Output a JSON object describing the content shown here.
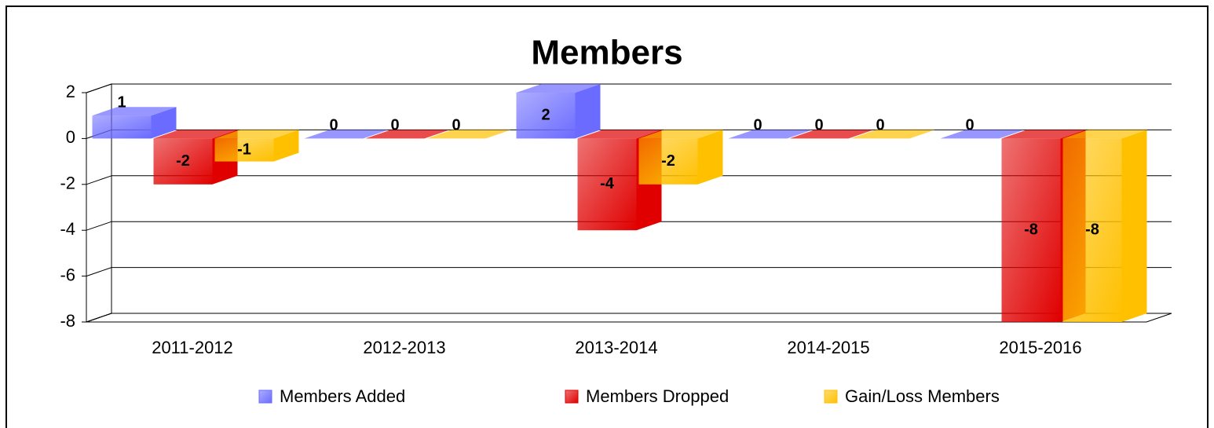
{
  "chart_data": {
    "type": "bar3d",
    "title": "Members",
    "categories": [
      "2011-2012",
      "2012-2013",
      "2013-2014",
      "2014-2015",
      "2015-2016"
    ],
    "series": [
      {
        "name": "Members Added",
        "color": "#6b6bff",
        "values": [
          1,
          0,
          2,
          0,
          0
        ]
      },
      {
        "name": "Members Dropped",
        "color": "#e00000",
        "values": [
          -2,
          0,
          -4,
          0,
          -8
        ]
      },
      {
        "name": "Gain/Loss Members",
        "color": "#ffc000",
        "values": [
          -1,
          0,
          -2,
          0,
          -8
        ]
      }
    ],
    "ylim": [
      -8,
      2
    ],
    "yticks": [
      -8,
      -6,
      -4,
      -2,
      0,
      2
    ],
    "grid": true,
    "legend": "bottom"
  }
}
